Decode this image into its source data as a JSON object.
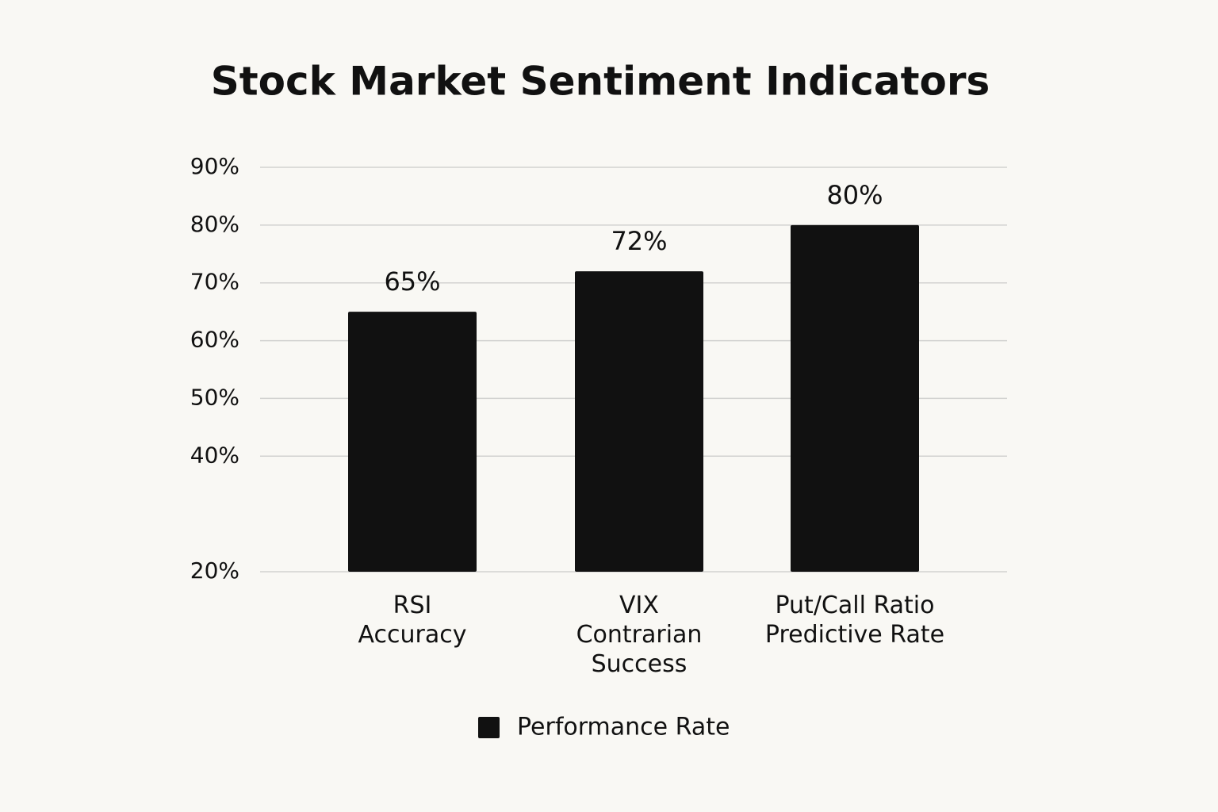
{
  "chart_data": {
    "type": "bar",
    "title": "Stock Market Sentiment Indicators",
    "categories": [
      "RSI\nAccuracy",
      "VIX\nContrarian\nSuccess",
      "Put/Call Ratio\nPredictive Rate"
    ],
    "series": [
      {
        "name": "Performance Rate",
        "color": "#111111",
        "values": [
          65,
          72,
          80
        ],
        "value_labels": [
          "65%",
          "72%",
          "80%"
        ]
      }
    ],
    "ylim": [
      20,
      90
    ],
    "yticks": [
      {
        "value": 20,
        "label": "20%"
      },
      {
        "value": 40,
        "label": "40%"
      },
      {
        "value": 50,
        "label": "50%"
      },
      {
        "value": 60,
        "label": "60%"
      },
      {
        "value": 70,
        "label": "70%"
      },
      {
        "value": 80,
        "label": "80%"
      },
      {
        "value": 90,
        "label": "90%"
      }
    ],
    "grid": true,
    "legend": "bottom"
  }
}
